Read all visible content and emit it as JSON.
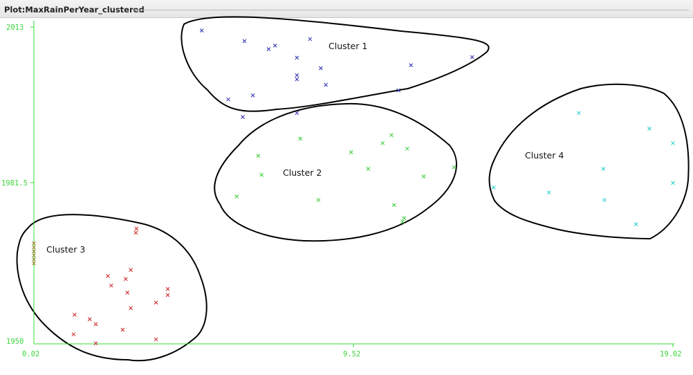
{
  "window": {
    "title": "Plot:MaxRainPerYear_clustered"
  },
  "colors": {
    "axis": "#33dd33",
    "cluster1": "#2a2ab0",
    "cluster2": "#33cc33",
    "cluster3": "#cc2222",
    "cluster3_edge": "#a07a30",
    "cluster4": "#22cccc",
    "outline": "#000000"
  },
  "chart_data": {
    "type": "scatter",
    "title": "Plot:MaxRainPerYear_clustered",
    "xlim": [
      0.02,
      19.02
    ],
    "ylim": [
      1950,
      2013
    ],
    "x_ticks": [
      "0.02",
      "9.52",
      "19.02"
    ],
    "y_ticks": [
      "2013",
      "1981.5",
      "1950"
    ],
    "grid": false,
    "series": [
      {
        "name": "Cluster 1",
        "color": "#2a2ab0",
        "points": [
          [
            5.01,
            2012.3
          ],
          [
            6.28,
            2010.2
          ],
          [
            7.0,
            2008.6
          ],
          [
            7.19,
            2009.3
          ],
          [
            7.84,
            2006.9
          ],
          [
            7.84,
            2003.4
          ],
          [
            7.84,
            2002.6
          ],
          [
            8.23,
            2010.6
          ],
          [
            8.55,
            2004.8
          ],
          [
            8.7,
            2001.5
          ],
          [
            11.23,
            2005.4
          ],
          [
            13.05,
            2007.0
          ],
          [
            6.53,
            1999.4
          ],
          [
            5.8,
            1998.6
          ],
          [
            7.84,
            1995.9
          ],
          [
            10.86,
            2000.4
          ],
          [
            6.23,
            1995.1
          ]
        ]
      },
      {
        "name": "Cluster 2",
        "color": "#33cc33",
        "points": [
          [
            7.94,
            1990.8
          ],
          [
            6.69,
            1987.4
          ],
          [
            6.79,
            1983.6
          ],
          [
            9.45,
            1988.1
          ],
          [
            9.96,
            1984.8
          ],
          [
            10.39,
            1989.9
          ],
          [
            10.65,
            1991.5
          ],
          [
            11.12,
            1988.8
          ],
          [
            11.61,
            1983.3
          ],
          [
            12.51,
            1985.1
          ],
          [
            6.05,
            1979.3
          ],
          [
            8.48,
            1978.6
          ],
          [
            10.73,
            1977.6
          ],
          [
            11.03,
            1975.0
          ],
          [
            10.98,
            1974.3
          ]
        ]
      },
      {
        "name": "Cluster 3",
        "color": "#cc2222",
        "points": [
          [
            0.02,
            1970.0
          ],
          [
            0.02,
            1969.2
          ],
          [
            0.02,
            1968.4
          ],
          [
            0.02,
            1967.6
          ],
          [
            0.02,
            1966.8
          ],
          [
            0.02,
            1966.0
          ],
          [
            3.07,
            1972.9
          ],
          [
            3.05,
            1972.1
          ],
          [
            2.9,
            1964.7
          ],
          [
            2.22,
            1963.5
          ],
          [
            2.32,
            1961.6
          ],
          [
            2.75,
            1962.9
          ],
          [
            2.8,
            1960.2
          ],
          [
            4.0,
            1960.9
          ],
          [
            4.0,
            1959.7
          ],
          [
            3.65,
            1958.2
          ],
          [
            2.9,
            1957.1
          ],
          [
            1.23,
            1955.8
          ],
          [
            1.68,
            1954.9
          ],
          [
            1.86,
            1953.9
          ],
          [
            2.66,
            1952.8
          ],
          [
            1.2,
            1951.9
          ],
          [
            1.86,
            1950.1
          ],
          [
            3.65,
            1950.9
          ]
        ]
      },
      {
        "name": "Cluster 4",
        "color": "#22cccc",
        "points": [
          [
            16.22,
            1995.9
          ],
          [
            18.32,
            1992.8
          ],
          [
            19.02,
            1989.9
          ],
          [
            16.95,
            1984.8
          ],
          [
            13.69,
            1981.1
          ],
          [
            15.33,
            1980.1
          ],
          [
            16.98,
            1978.6
          ],
          [
            19.02,
            1982.0
          ],
          [
            17.92,
            1973.8
          ]
        ]
      }
    ],
    "cluster_labels": [
      "Cluster 1",
      "Cluster 2",
      "Cluster 3",
      "Cluster 4"
    ]
  }
}
